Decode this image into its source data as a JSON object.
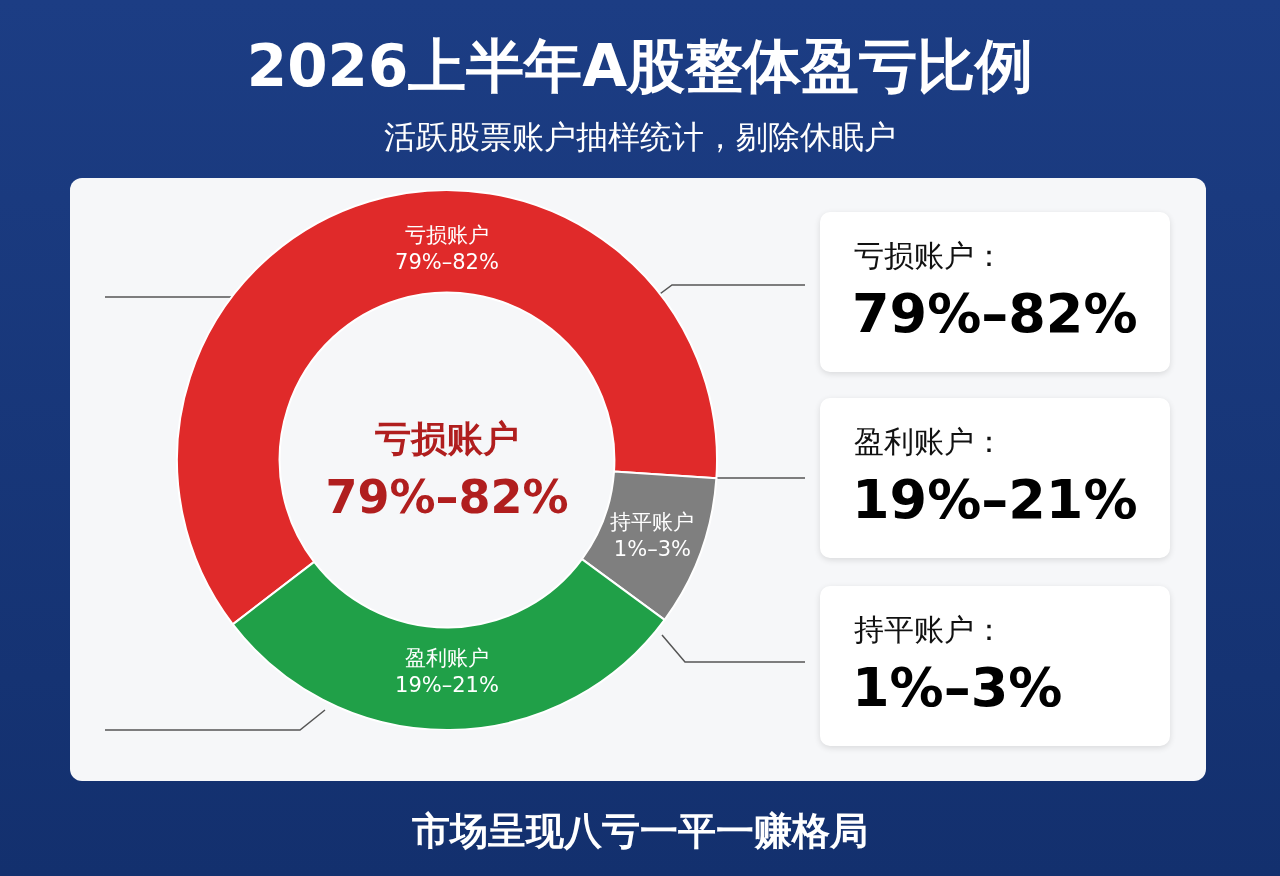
{
  "chart_data": [
    {
      "type": "donut",
      "title": "2026上半年A股整体盈亏比例",
      "subtitle": "活跃股票账户抽样统计，剔除休眠户",
      "categories": [
        "亏损账户",
        "持平账户",
        "盈利账户"
      ],
      "values": [
        61.5,
        9,
        29.5
      ],
      "colors": [
        "#e02a2a",
        "#7f7f7f",
        "#20a048"
      ],
      "legend": false,
      "annotations": [
        "亏损账户",
        "79%–82%",
        "市场呈现八亏一平一赚格局",
        "79%–82%",
        "1%–3%",
        "19%–21%"
      ]
    },
    {
      "type": "other",
      "annotations": [
        "亏损账户：",
        "79%–82%",
        "盈利账户：",
        "19%–21%",
        "持平账户：",
        "1%–3%"
      ]
    }
  ]
}
